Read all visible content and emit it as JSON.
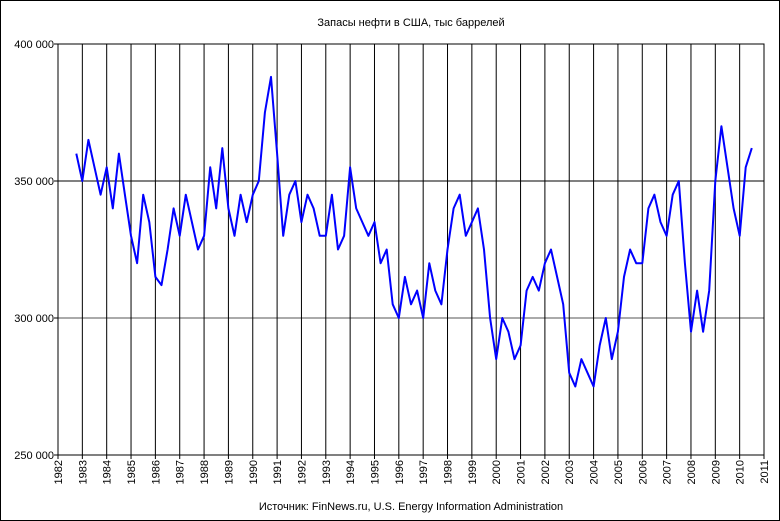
{
  "chart_data": {
    "type": "line",
    "title": "Запасы нефти в США, тыс баррелей",
    "xlabel": "Источник: FinNews.ru, U.S. Energy Information Administration",
    "xlim": [
      1982,
      2011
    ],
    "xticks": [
      1982,
      1983,
      1984,
      1985,
      1986,
      1987,
      1988,
      1989,
      1990,
      1991,
      1992,
      1993,
      1994,
      1995,
      1996,
      1997,
      1998,
      1999,
      2000,
      2001,
      2002,
      2003,
      2004,
      2005,
      2006,
      2007,
      2008,
      2009,
      2010,
      2011
    ],
    "ylim": [
      250000,
      400000
    ],
    "yticks": [
      {
        "value": 250000,
        "label": "250 000"
      },
      {
        "value": 300000,
        "label": "300 000"
      },
      {
        "value": 350000,
        "label": "350 000"
      },
      {
        "value": 400000,
        "label": "400 000"
      }
    ],
    "grid": true,
    "series": [
      {
        "color": "#0000ff",
        "x": [
          1982.75,
          1983,
          1983.25,
          1983.5,
          1983.75,
          1984,
          1984.25,
          1984.5,
          1984.75,
          1985,
          1985.25,
          1985.5,
          1985.75,
          1986,
          1986.25,
          1986.5,
          1986.75,
          1987,
          1987.25,
          1987.5,
          1987.75,
          1988,
          1988.25,
          1988.5,
          1988.75,
          1989,
          1989.25,
          1989.5,
          1989.75,
          1990,
          1990.25,
          1990.5,
          1990.75,
          1991,
          1991.25,
          1991.5,
          1991.75,
          1992,
          1992.25,
          1992.5,
          1992.75,
          1993,
          1993.25,
          1993.5,
          1993.75,
          1994,
          1994.25,
          1994.5,
          1994.75,
          1995,
          1995.25,
          1995.5,
          1995.75,
          1996,
          1996.25,
          1996.5,
          1996.75,
          1997,
          1997.25,
          1997.5,
          1997.75,
          1998,
          1998.25,
          1998.5,
          1998.75,
          1999,
          1999.25,
          1999.5,
          1999.75,
          2000,
          2000.25,
          2000.5,
          2000.75,
          2001,
          2001.25,
          2001.5,
          2001.75,
          2002,
          2002.25,
          2002.5,
          2002.75,
          2003,
          2003.25,
          2003.5,
          2003.75,
          2004,
          2004.25,
          2004.5,
          2004.75,
          2005,
          2005.25,
          2005.5,
          2005.75,
          2006,
          2006.25,
          2006.5,
          2006.75,
          2007,
          2007.25,
          2007.5,
          2007.75,
          2008,
          2008.25,
          2008.5,
          2008.75,
          2009,
          2009.25,
          2009.5,
          2009.75,
          2010,
          2010.25,
          2010.5
        ],
        "values": [
          360000,
          350000,
          365000,
          355000,
          345000,
          355000,
          340000,
          360000,
          345000,
          330000,
          320000,
          345000,
          335000,
          315000,
          312000,
          325000,
          340000,
          330000,
          345000,
          335000,
          325000,
          330000,
          355000,
          340000,
          362000,
          340000,
          330000,
          345000,
          335000,
          345000,
          350000,
          375000,
          388000,
          360000,
          330000,
          345000,
          350000,
          335000,
          345000,
          340000,
          330000,
          330000,
          345000,
          325000,
          330000,
          355000,
          340000,
          335000,
          330000,
          335000,
          320000,
          325000,
          305000,
          300000,
          315000,
          305000,
          310000,
          300000,
          320000,
          310000,
          305000,
          325000,
          340000,
          345000,
          330000,
          335000,
          340000,
          325000,
          300000,
          285000,
          300000,
          295000,
          285000,
          290000,
          310000,
          315000,
          310000,
          320000,
          325000,
          315000,
          305000,
          280000,
          275000,
          285000,
          280000,
          275000,
          290000,
          300000,
          285000,
          295000,
          315000,
          325000,
          320000,
          320000,
          340000,
          345000,
          335000,
          330000,
          345000,
          350000,
          320000,
          295000,
          310000,
          295000,
          310000,
          350000,
          370000,
          355000,
          340000,
          330000,
          355000,
          362000
        ]
      }
    ]
  }
}
